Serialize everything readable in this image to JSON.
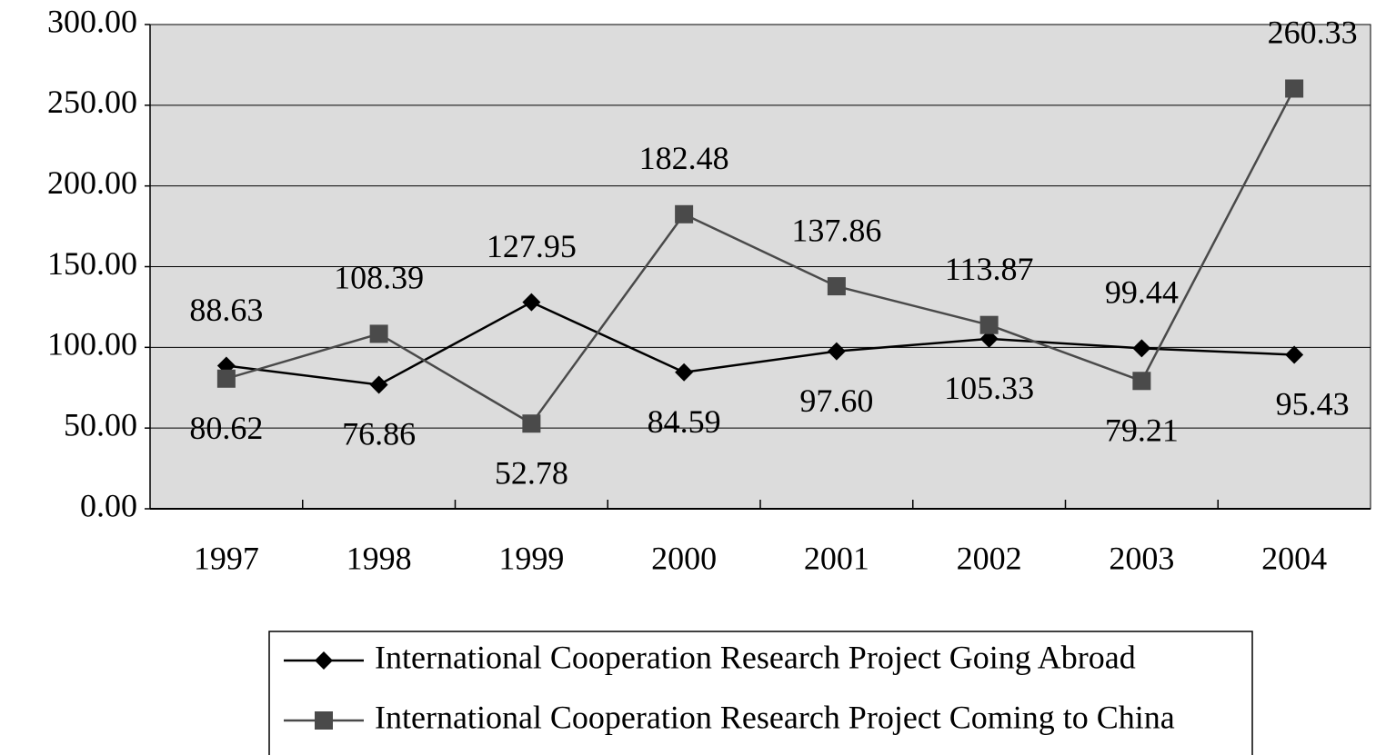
{
  "chart_data": {
    "type": "line",
    "categories": [
      "1997",
      "1998",
      "1999",
      "2000",
      "2001",
      "2002",
      "2003",
      "2004"
    ],
    "series": [
      {
        "name": "International Cooperation Research Project Going Abroad",
        "color": "#000000",
        "marker": "diamond",
        "values": [
          88.63,
          76.86,
          127.95,
          84.59,
          97.6,
          105.33,
          99.44,
          95.43
        ],
        "value_labels": [
          "88.63",
          "76.86",
          "127.95",
          "84.59",
          "97.60",
          "105.33",
          "99.44",
          "95.43"
        ]
      },
      {
        "name": "International Cooperation Research Project Coming to China",
        "color": "#4a4a4a",
        "marker": "square",
        "values": [
          80.62,
          108.39,
          52.78,
          182.48,
          137.86,
          113.87,
          79.21,
          260.33
        ],
        "value_labels": [
          "80.62",
          "108.39",
          "52.78",
          "182.48",
          "137.86",
          "113.87",
          "79.21",
          "260.33"
        ]
      }
    ],
    "ylim": [
      0,
      300
    ],
    "yticks": [
      {
        "value": 0,
        "label": "0.00"
      },
      {
        "value": 50,
        "label": "50.00"
      },
      {
        "value": 100,
        "label": "100.00"
      },
      {
        "value": 150,
        "label": "150.00"
      },
      {
        "value": 200,
        "label": "200.00"
      },
      {
        "value": 250,
        "label": "250.00"
      },
      {
        "value": 300,
        "label": "300.00"
      }
    ],
    "grid": true,
    "legend": "bottom"
  }
}
